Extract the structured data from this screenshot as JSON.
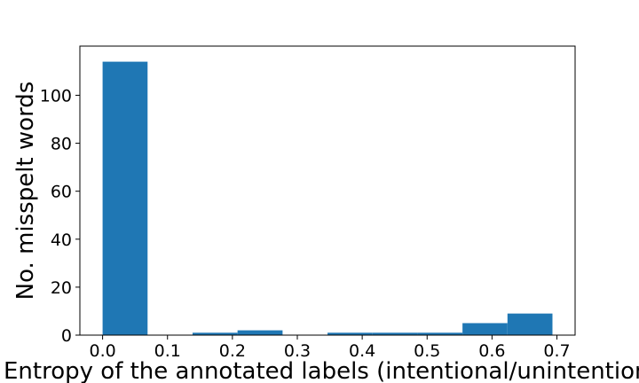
{
  "chart_data": {
    "type": "bar",
    "title": "",
    "xlabel": "Entropy of the annotated labels (intentional/unintentional)",
    "ylabel": "No. misspelt words",
    "xlim": [
      -0.035,
      0.728
    ],
    "ylim": [
      0,
      120.5
    ],
    "x_ticks": [
      0.0,
      0.1,
      0.2,
      0.3,
      0.4,
      0.5,
      0.6,
      0.7
    ],
    "x_tick_labels": [
      "0.0",
      "0.1",
      "0.2",
      "0.3",
      "0.4",
      "0.5",
      "0.6",
      "0.7"
    ],
    "y_ticks": [
      0,
      20,
      40,
      60,
      80,
      100
    ],
    "y_tick_labels": [
      "0",
      "20",
      "40",
      "60",
      "80",
      "100"
    ],
    "grid": false,
    "color": "#1f77b4",
    "bins": [
      {
        "x0": 0.0,
        "x1": 0.0693,
        "value": 114
      },
      {
        "x0": 0.0693,
        "x1": 0.1386,
        "value": 0
      },
      {
        "x0": 0.1386,
        "x1": 0.2079,
        "value": 1
      },
      {
        "x0": 0.2079,
        "x1": 0.2773,
        "value": 2
      },
      {
        "x0": 0.2773,
        "x1": 0.3466,
        "value": 0
      },
      {
        "x0": 0.3466,
        "x1": 0.4159,
        "value": 1
      },
      {
        "x0": 0.4159,
        "x1": 0.4852,
        "value": 1
      },
      {
        "x0": 0.4852,
        "x1": 0.5545,
        "value": 1
      },
      {
        "x0": 0.5545,
        "x1": 0.6238,
        "value": 5
      },
      {
        "x0": 0.6238,
        "x1": 0.6931,
        "value": 9
      }
    ]
  }
}
